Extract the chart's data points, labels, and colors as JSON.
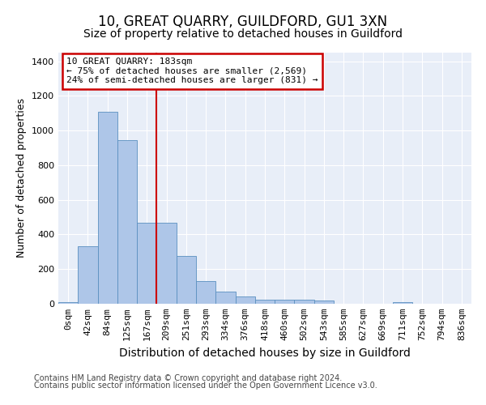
{
  "title": "10, GREAT QUARRY, GUILDFORD, GU1 3XN",
  "subtitle": "Size of property relative to detached houses in Guildford",
  "xlabel": "Distribution of detached houses by size in Guildford",
  "ylabel": "Number of detached properties",
  "footnote1": "Contains HM Land Registry data © Crown copyright and database right 2024.",
  "footnote2": "Contains public sector information licensed under the Open Government Licence v3.0.",
  "bar_labels": [
    "0sqm",
    "42sqm",
    "84sqm",
    "125sqm",
    "167sqm",
    "209sqm",
    "251sqm",
    "293sqm",
    "334sqm",
    "376sqm",
    "418sqm",
    "460sqm",
    "502sqm",
    "543sqm",
    "585sqm",
    "627sqm",
    "669sqm",
    "711sqm",
    "752sqm",
    "794sqm",
    "836sqm"
  ],
  "bar_values": [
    10,
    330,
    1110,
    945,
    470,
    470,
    275,
    130,
    70,
    40,
    25,
    25,
    25,
    20,
    0,
    0,
    0,
    10,
    0,
    0,
    0
  ],
  "bar_color": "#aec6e8",
  "bar_edgecolor": "#5a8fc0",
  "vline_x": 4.5,
  "vline_color": "#cc0000",
  "annotation_line1": "10 GREAT QUARRY: 183sqm",
  "annotation_line2": "← 75% of detached houses are smaller (2,569)",
  "annotation_line3": "24% of semi-detached houses are larger (831) →",
  "annotation_box_color": "#cc0000",
  "ylim": [
    0,
    1450
  ],
  "yticks": [
    0,
    200,
    400,
    600,
    800,
    1000,
    1200,
    1400
  ],
  "plot_bg_color": "#e8eef8",
  "title_fontsize": 12,
  "subtitle_fontsize": 10,
  "xlabel_fontsize": 10,
  "ylabel_fontsize": 9,
  "tick_fontsize": 8,
  "annotation_fontsize": 8,
  "footnote_fontsize": 7
}
